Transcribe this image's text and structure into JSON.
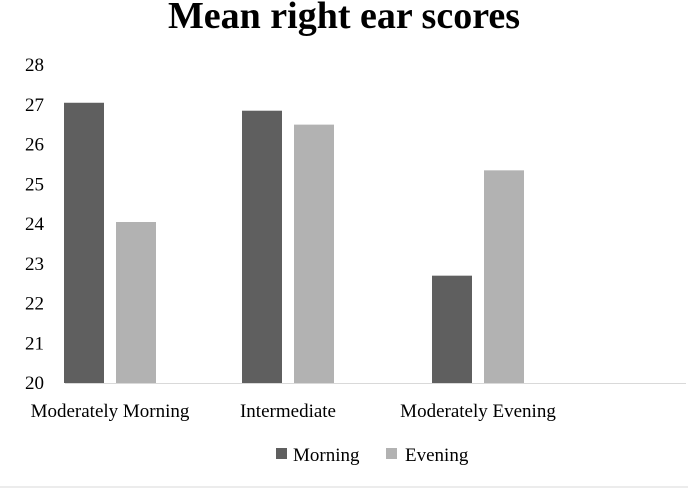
{
  "chart_data": {
    "type": "bar",
    "title": "Mean right ear scores",
    "xlabel": "",
    "ylabel": "",
    "categories": [
      "Moderately Morning",
      "Intermediate",
      "Moderately Evening"
    ],
    "series": [
      {
        "name": "Morning",
        "values": [
          27.05,
          26.85,
          22.7
        ],
        "color": "#5f5f5f"
      },
      {
        "name": "Evening",
        "values": [
          24.05,
          26.5,
          25.35
        ],
        "color": "#b2b2b2"
      }
    ],
    "ylim": [
      20,
      28
    ],
    "yticks": [
      20,
      21,
      22,
      23,
      24,
      25,
      26,
      27,
      28
    ],
    "grid": false,
    "legend_position": "bottom"
  }
}
